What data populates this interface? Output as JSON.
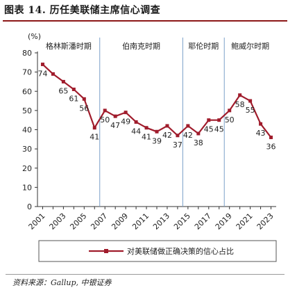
{
  "figure": {
    "title": "图表 14. 历任美联储主席信心调查",
    "source": "资料来源：Gallup, 中银证券"
  },
  "chart_data": {
    "type": "line",
    "unit_label": "(%)",
    "x": [
      2001,
      2002,
      2003,
      2004,
      2005,
      2006,
      2007,
      2008,
      2009,
      2010,
      2011,
      2012,
      2013,
      2014,
      2015,
      2016,
      2017,
      2018,
      2019,
      2020,
      2021,
      2022,
      2023
    ],
    "xticks": [
      "2001",
      "2003",
      "2005",
      "2007",
      "2009",
      "2011",
      "2013",
      "2015",
      "2017",
      "2019",
      "2021",
      "2023"
    ],
    "ylim": [
      0,
      80
    ],
    "yticks": [
      0,
      10,
      20,
      30,
      40,
      50,
      60,
      70,
      80
    ],
    "series": [
      {
        "name": "对美联储做正确决策的信心占比",
        "color": "#a01c2c",
        "values": [
          74,
          69,
          65,
          61,
          56,
          41,
          50,
          47,
          49,
          44,
          41,
          39,
          42,
          37,
          42,
          38,
          45,
          45,
          50,
          58,
          55,
          43,
          36
        ]
      }
    ],
    "data_labels": [
      {
        "x": 2001,
        "y": 74
      },
      {
        "x": 2003,
        "y": 65
      },
      {
        "x": 2004,
        "y": 61
      },
      {
        "x": 2005,
        "y": 56
      },
      {
        "x": 2006,
        "y": 41
      },
      {
        "x": 2007,
        "y": 50
      },
      {
        "x": 2008,
        "y": 47
      },
      {
        "x": 2009,
        "y": 49
      },
      {
        "x": 2010,
        "y": 44
      },
      {
        "x": 2011,
        "y": 41
      },
      {
        "x": 2012,
        "y": 39
      },
      {
        "x": 2013,
        "y": 42
      },
      {
        "x": 2014,
        "y": 37
      },
      {
        "x": 2015,
        "y": 42
      },
      {
        "x": 2016,
        "y": 38
      },
      {
        "x": 2017,
        "y": 45
      },
      {
        "x": 2018,
        "y": 45
      },
      {
        "x": 2019,
        "y": 50
      },
      {
        "x": 2020,
        "y": 58
      },
      {
        "x": 2021,
        "y": 55
      },
      {
        "x": 2022,
        "y": 43
      },
      {
        "x": 2023,
        "y": 36
      }
    ],
    "eras": [
      {
        "label": "格林斯潘时期",
        "start": 2001,
        "end": 2006
      },
      {
        "label": "伯南克时期",
        "start": 2006,
        "end": 2014
      },
      {
        "label": "耶伦时期",
        "start": 2014,
        "end": 2018
      },
      {
        "label": "鲍威尔时期",
        "start": 2018,
        "end": 2023
      }
    ],
    "grid": false,
    "legend_position": "bottom-center"
  }
}
